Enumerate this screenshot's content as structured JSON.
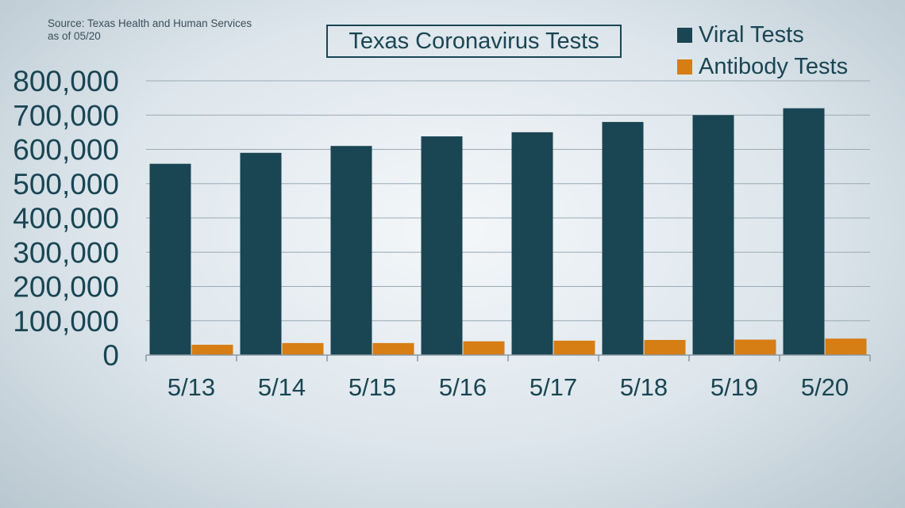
{
  "source": {
    "line1": "Source: Texas Health and Human Services",
    "line2": "as of 05/20"
  },
  "colors": {
    "viral": "#1a4553",
    "antibody": "#d67d13",
    "grid": "#9aaab4",
    "text": "#1a4553"
  },
  "chart_data": {
    "type": "bar",
    "title": "Texas Coronavirus Tests",
    "xlabel": "",
    "ylabel": "",
    "categories": [
      "5/13",
      "5/14",
      "5/15",
      "5/16",
      "5/17",
      "5/18",
      "5/19",
      "5/20"
    ],
    "series": [
      {
        "name": "Viral Tests",
        "values": [
          558000,
          590000,
          610000,
          638000,
          650000,
          680000,
          700000,
          720000
        ]
      },
      {
        "name": "Antibody Tests",
        "values": [
          30000,
          35000,
          35000,
          40000,
          42000,
          44000,
          45000,
          48000
        ]
      }
    ],
    "ylim": [
      0,
      800000
    ],
    "yticks": [
      0,
      100000,
      200000,
      300000,
      400000,
      500000,
      600000,
      700000,
      800000
    ],
    "ytick_labels": [
      "0",
      "100,000",
      "200,000",
      "300,000",
      "400,000",
      "500,000",
      "600,000",
      "700,000",
      "800,000"
    ],
    "grid": true,
    "legend_position": "top-right"
  }
}
